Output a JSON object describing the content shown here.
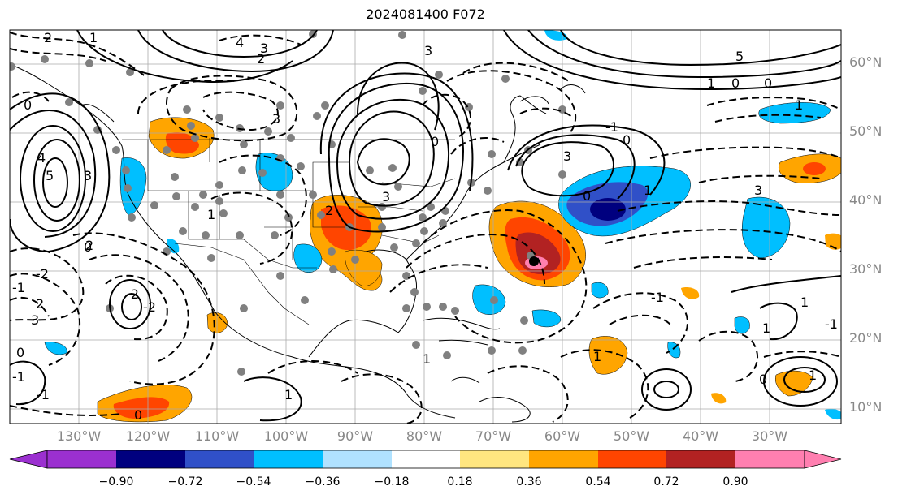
{
  "title": "2024081400 F072",
  "lat_labels": [
    "60°N",
    "50°N",
    "40°N",
    "30°N",
    "20°N",
    "10°N"
  ],
  "lon_labels": [
    "130°W",
    "120°W",
    "110°W",
    "100°W",
    "90°W",
    "80°W",
    "70°W",
    "60°W",
    "50°W",
    "40°W",
    "30°W"
  ],
  "colorbar": {
    "ticks": [
      "−0.90",
      "−0.72",
      "−0.54",
      "−0.36",
      "−0.18",
      "0.18",
      "0.36",
      "0.54",
      "0.72",
      "0.90"
    ],
    "colors": [
      "#9b30d0",
      "#00007f",
      "#3050c8",
      "#00bfff",
      "#b0e2ff",
      "#ffffff",
      "#ffe680",
      "#ffa500",
      "#ff4500",
      "#b22222",
      "#ff7fb0"
    ]
  },
  "contour_labels": [
    "2",
    "1",
    "4",
    "3",
    "2",
    "3",
    "5",
    "1",
    "0",
    "0",
    "1",
    "3",
    "4",
    "5",
    "3",
    "0",
    "3",
    "2",
    "-1",
    "0",
    "1",
    "3",
    "0",
    "3",
    "-2",
    "2",
    "3",
    "0",
    "-2",
    "-2",
    "-1",
    "1",
    "1",
    "-1",
    "1",
    "0",
    "1",
    "-1",
    "-1",
    "0",
    "1",
    "2",
    "-1",
    "0",
    "1",
    "0",
    "1"
  ]
}
